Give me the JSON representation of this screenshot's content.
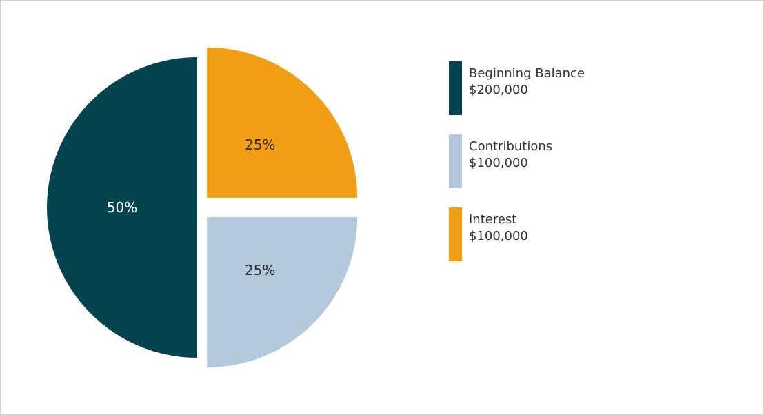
{
  "chart_data": {
    "type": "pie",
    "title": "",
    "exploded": true,
    "slices": [
      {
        "name": "Beginning Balance",
        "amount": "$200,000",
        "value": 200000,
        "percent_label": "50%",
        "color": "#04444f",
        "label_color": "#ffffff"
      },
      {
        "name": "Contributions",
        "amount": "$100,000",
        "value": 100000,
        "percent_label": "25%",
        "color": "#b5c9dc",
        "label_color": "#333333"
      },
      {
        "name": "Interest",
        "amount": "$100,000",
        "value": 100000,
        "percent_label": "25%",
        "color": "#f29e14",
        "label_color": "#333333"
      }
    ],
    "legend_position": "right"
  }
}
